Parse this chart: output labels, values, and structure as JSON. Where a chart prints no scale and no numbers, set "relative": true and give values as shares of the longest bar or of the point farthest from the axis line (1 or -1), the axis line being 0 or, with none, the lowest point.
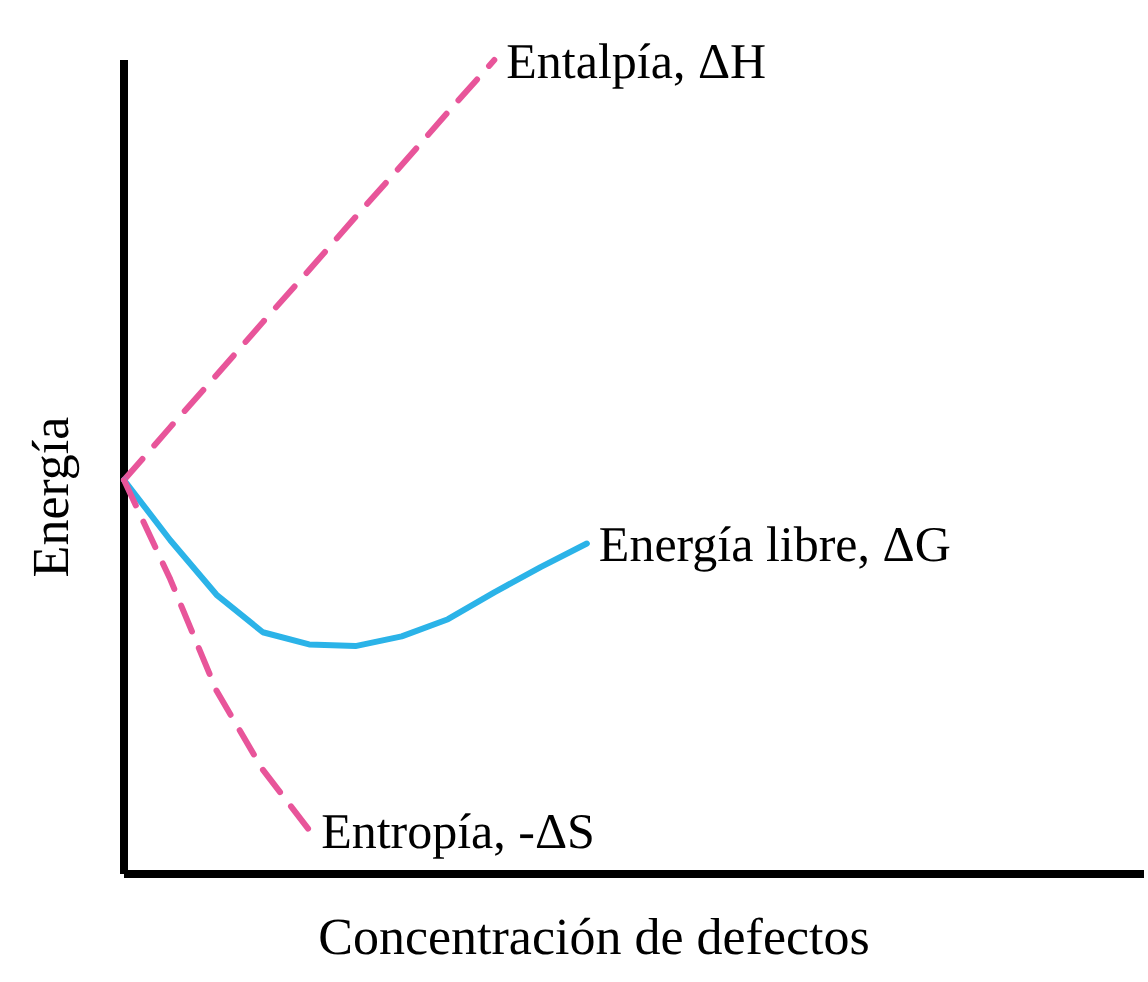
{
  "chart_data": {
    "type": "line",
    "relative": true,
    "xlabel": "Concentración de defectos",
    "ylabel": "Energía",
    "legend": false,
    "categories": [
      null,
      null,
      null,
      null,
      null,
      null,
      null,
      null,
      null,
      null,
      null,
      null,
      null,
      null,
      null,
      null,
      null,
      null,
      null,
      null,
      null,
      null
    ],
    "series": [
      {
        "name": "Entalpía, ΔH",
        "color": "#e8559a",
        "line_style": "dashed",
        "values": [
          0.484,
          0.549,
          0.613,
          0.678,
          0.742,
          0.807,
          0.871,
          0.936,
          1,
          null,
          null,
          null,
          null,
          null,
          null,
          null,
          null,
          null,
          null,
          null,
          null,
          null
        ]
      },
      {
        "name": "Energía libre, ΔG",
        "color": "#2bb3e8",
        "line_style": "solid",
        "values": [
          0.484,
          0.41,
          0.343,
          0.297,
          0.282,
          0.28,
          0.292,
          0.313,
          0.346,
          0.377,
          0.406,
          null,
          null,
          null,
          null,
          null,
          null,
          null,
          null,
          null,
          null,
          null
        ]
      },
      {
        "name": "Entropía, -ΔS",
        "color": "#e8559a",
        "line_style": "dashed",
        "values": [
          0.484,
          0.362,
          0.225,
          0.128,
          0.054,
          null,
          null,
          null,
          null,
          null,
          null,
          null,
          null,
          null,
          null,
          null,
          null,
          null,
          null,
          null,
          null,
          null
        ]
      }
    ]
  }
}
